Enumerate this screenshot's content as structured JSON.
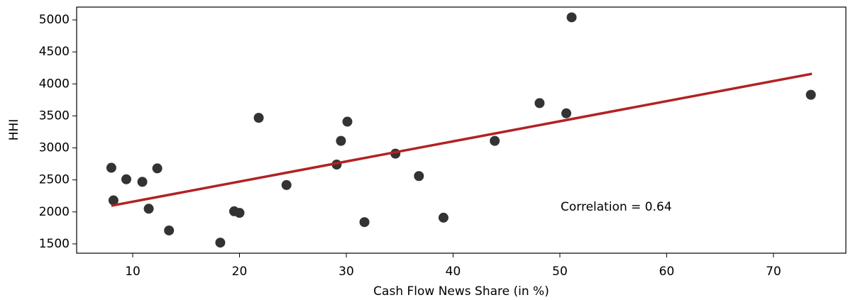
{
  "chart_data": {
    "type": "scatter",
    "x_label": "Cash Flow News Share (in %)",
    "y_label": "HHI",
    "annotation": "Correlation = 0.64",
    "x": [
      8.0,
      8.2,
      9.4,
      10.9,
      11.5,
      12.3,
      13.4,
      18.2,
      19.5,
      20.0,
      21.8,
      24.4,
      29.1,
      29.5,
      30.1,
      31.7,
      34.6,
      36.8,
      39.1,
      43.9,
      48.1,
      50.6,
      51.1,
      73.5
    ],
    "y": [
      2690,
      2180,
      2510,
      2470,
      2050,
      2680,
      1710,
      1520,
      2010,
      1985,
      3470,
      2420,
      2740,
      3110,
      3410,
      1840,
      2910,
      2560,
      1910,
      3110,
      3700,
      3540,
      5040,
      3830
    ],
    "color": "#333333",
    "fit": {
      "x": [
        8.0,
        73.6
      ],
      "y": [
        2097,
        4158
      ],
      "color": "#b22222"
    },
    "xlim": [
      4.75,
      76.78
    ],
    "ylim": [
      1355,
      5200
    ],
    "xticks": [
      10,
      20,
      30,
      40,
      50,
      60,
      70
    ],
    "yticks": [
      1500,
      2000,
      2500,
      3000,
      3500,
      4000,
      4500,
      5000
    ]
  }
}
